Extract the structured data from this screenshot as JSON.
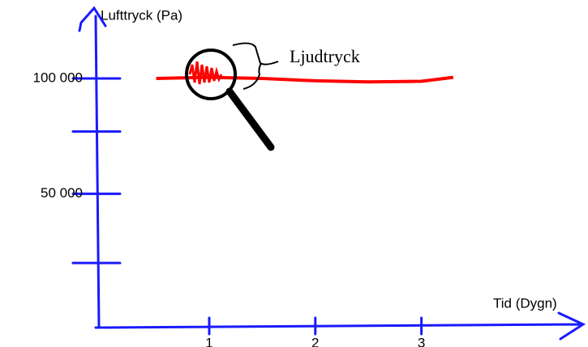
{
  "chart_data": {
    "type": "line",
    "y_label": "Lufttryck (Pa)",
    "x_label": "Tid (Dygn)",
    "annotation": "Ljudtryck",
    "xlim": [
      -0.07,
      4.57
    ],
    "ylim": [
      -8000,
      120000
    ],
    "xticks": [
      1,
      2,
      3
    ],
    "yticks": [
      {
        "value": 100000,
        "label": "100 000"
      },
      77000,
      {
        "value": 50000,
        "label": "50 000"
      },
      20000
    ],
    "ytick_labels_shown": [
      true,
      false,
      true,
      false
    ],
    "axis_color": "#1a1aff",
    "series": [
      {
        "color": "#ff0000",
        "x": [
          0.5,
          1,
          1.5,
          2,
          2.5,
          3,
          3.3
        ],
        "values": [
          100000,
          100500,
          100000,
          99000,
          98500,
          98800,
          100500
        ]
      }
    ]
  }
}
